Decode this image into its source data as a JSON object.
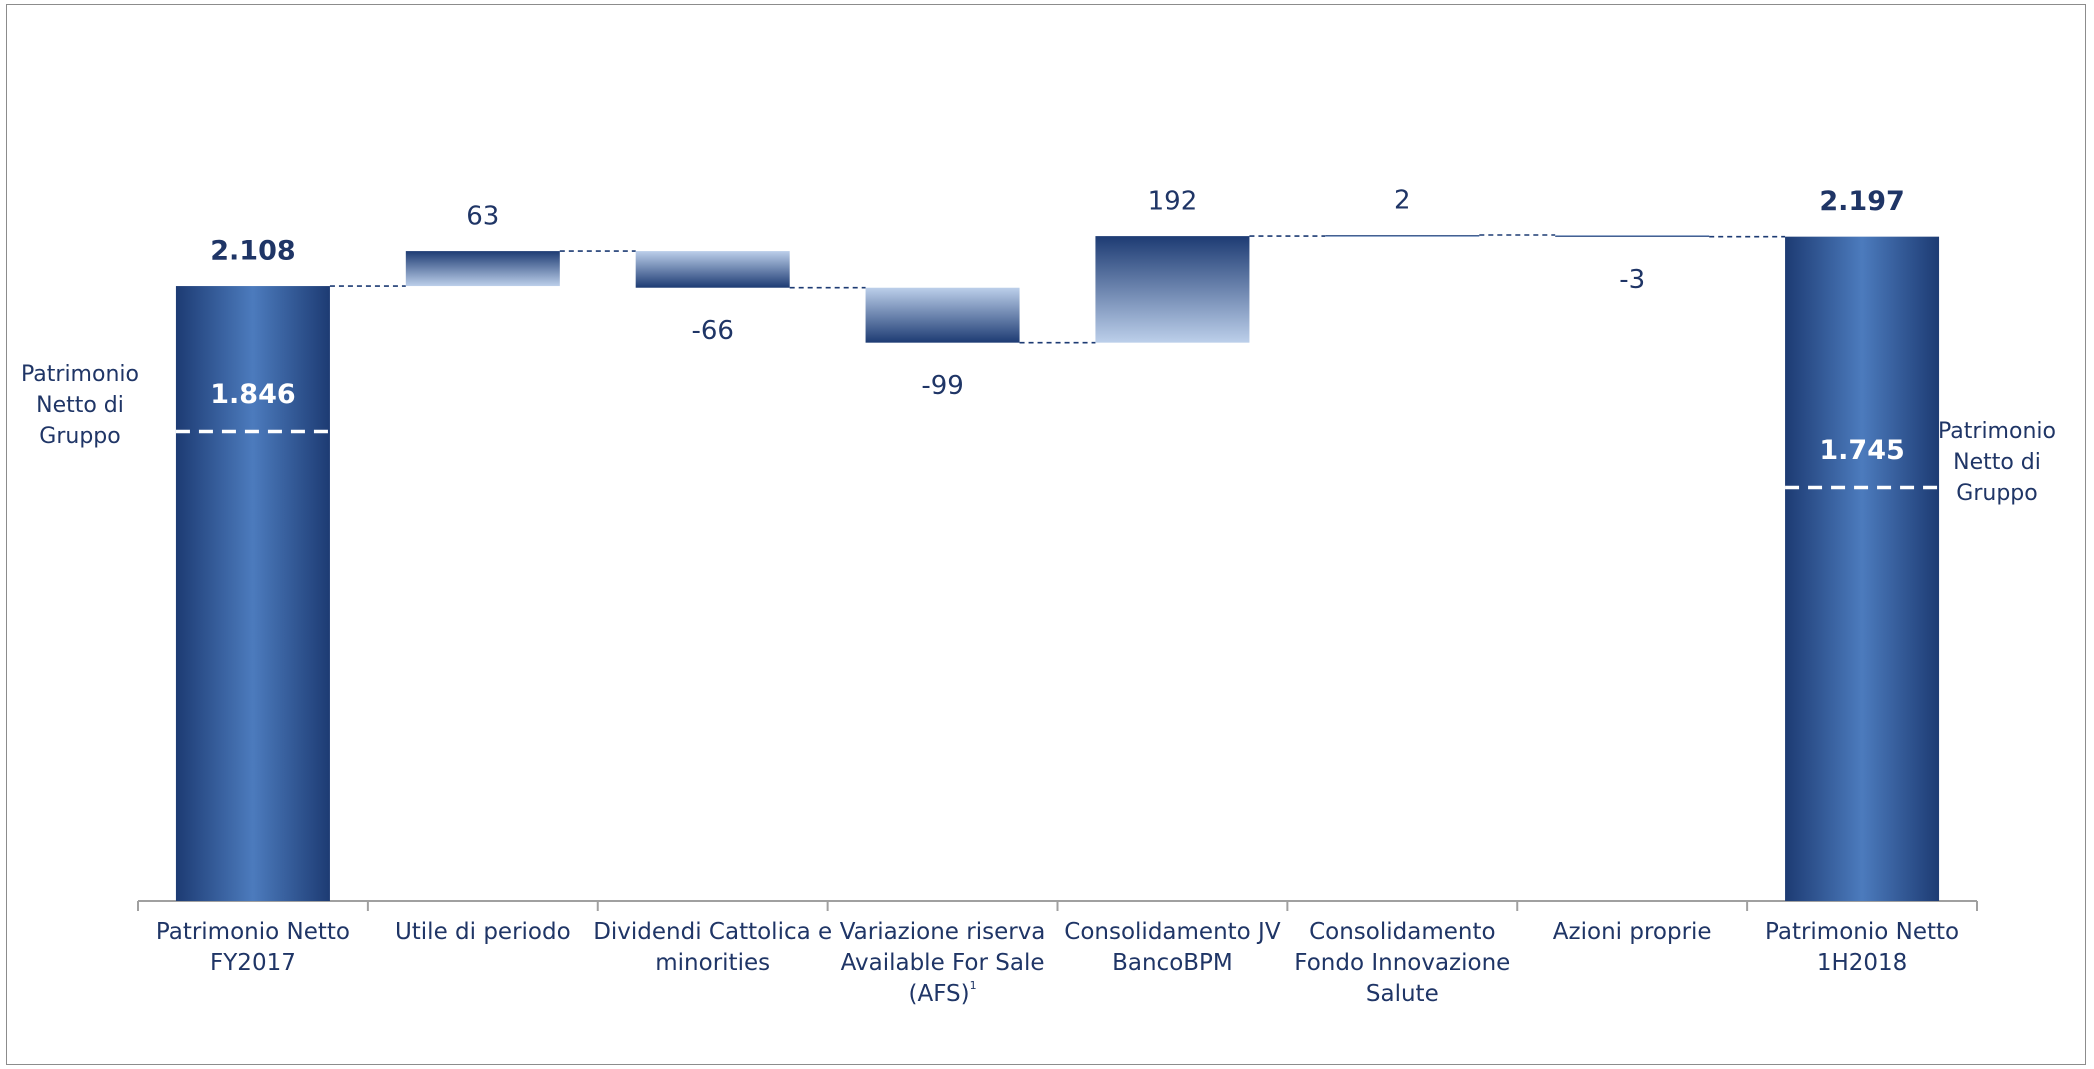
{
  "chart_data": {
    "type": "waterfall",
    "categories": [
      "Patrimonio Netto FY2017",
      "Utile di periodo",
      "Dividendi Cattolica e minorities",
      "Variazione riserva Available For Sale (AFS)",
      "Consolidamento JV BancoBPM",
      "Consolidamento Fondo Innovazione Salute",
      "Azioni proprie",
      "Patrimonio Netto 1H2018"
    ],
    "footnote_marker": "1",
    "values": [
      2108,
      63,
      -66,
      -99,
      192,
      2,
      -3,
      2197
    ],
    "value_labels": [
      "2.108",
      "63",
      "-66",
      "-99",
      "192",
      "2",
      "-3",
      "2.197"
    ],
    "measures": [
      "absolute",
      "relative",
      "relative",
      "relative",
      "relative",
      "relative",
      "relative",
      "total"
    ],
    "group_values": [
      1846,
      null,
      null,
      null,
      null,
      null,
      null,
      1745
    ],
    "group_value_labels": [
      "1.846",
      null,
      null,
      null,
      null,
      null,
      null,
      "1.745"
    ],
    "group_labels": [
      "Patrimonio Netto di Gruppo",
      null,
      null,
      null,
      null,
      null,
      null,
      "Patrimonio Netto di Gruppo"
    ],
    "ylim": [
      1000,
      2400
    ],
    "colors": {
      "dark": "#1d3b73",
      "mid": "#4c7bbd",
      "light": "#bccfea",
      "text": "#1f3566"
    }
  }
}
